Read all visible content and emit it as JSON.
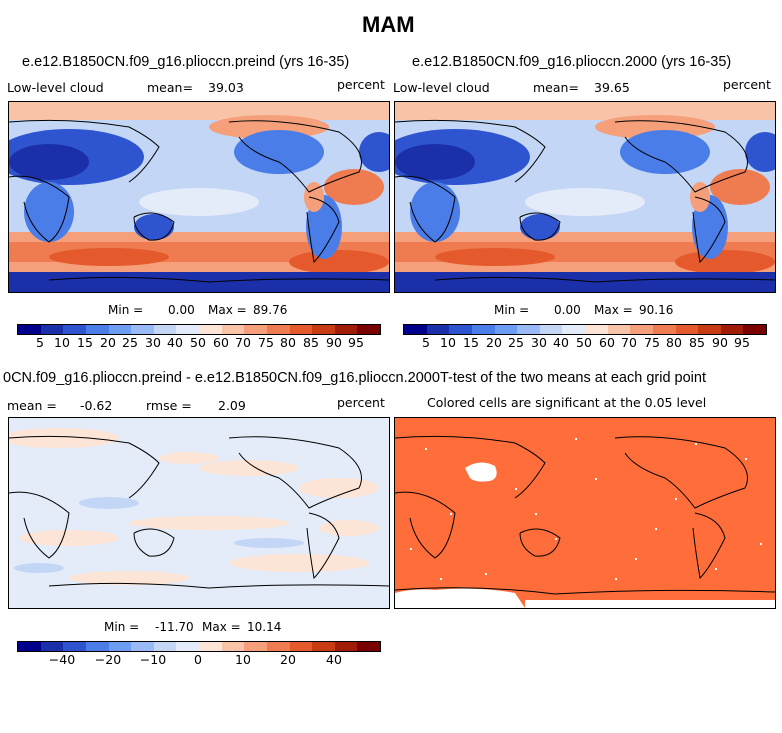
{
  "figure": {
    "title": "MAM"
  },
  "chart_data": [
    {
      "type": "heatmap",
      "title": "e.e12.B1850CN.f09_g16.plioccn.preind (yrs 16-35)",
      "variable": "Low-level cloud",
      "mean_label": "mean=",
      "mean": "39.03",
      "units": "percent",
      "min_label": "Min =",
      "min": "0.00",
      "max_label": "Max =",
      "max": "89.76",
      "colorbar_ticks": [
        "5",
        "10",
        "15",
        "20",
        "25",
        "30",
        "40",
        "50",
        "60",
        "70",
        "75",
        "80",
        "85",
        "90",
        "95"
      ]
    },
    {
      "type": "heatmap",
      "title": "e.e12.B1850CN.f09_g16.plioccn.2000 (yrs 16-35)",
      "variable": "Low-level cloud",
      "mean_label": "mean=",
      "mean": "39.65",
      "units": "percent",
      "min_label": "Min =",
      "min": "0.00",
      "max_label": "Max =",
      "max": "90.16",
      "colorbar_ticks": [
        "5",
        "10",
        "15",
        "20",
        "25",
        "30",
        "40",
        "50",
        "60",
        "70",
        "75",
        "80",
        "85",
        "90",
        "95"
      ]
    },
    {
      "type": "heatmap",
      "title": "0CN.f09_g16.plioccn.preind - e.e12.B1850CN.f09_g16.plioccn.2000",
      "mean_label": "mean =",
      "mean": "-0.62",
      "rmse_label": "rmse =",
      "rmse": "2.09",
      "units": "percent",
      "min_label": "Min =",
      "min": "-11.70",
      "max_label": "Max =",
      "max": "10.14",
      "colorbar_ticks": [
        "−40",
        "−20",
        "−10",
        "0",
        "10",
        "20",
        "40"
      ]
    },
    {
      "type": "heatmap",
      "title": "T-test of the two means at each grid point",
      "subtitle": "Colored cells are significant at the 0.05 level"
    }
  ],
  "colors": {
    "scale": [
      "#00008b",
      "#1a2fa8",
      "#2e54d0",
      "#4a7de8",
      "#6d9cf5",
      "#9ab9f7",
      "#c4d6f6",
      "#e3ecf8",
      "#fce4d6",
      "#f9c3a7",
      "#f5a07a",
      "#ef7b50",
      "#e55a2c",
      "#c83c14",
      "#9e1c08",
      "#7a0000"
    ],
    "ttest": "#ff6e3a"
  }
}
